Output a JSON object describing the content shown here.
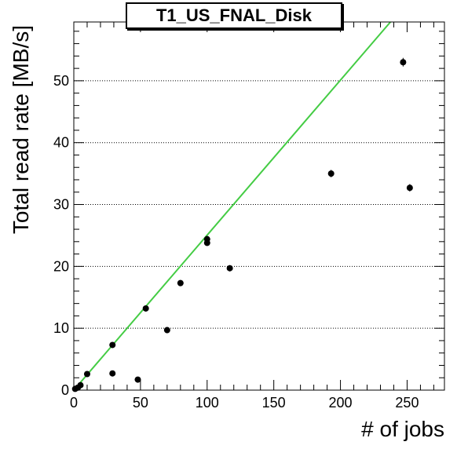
{
  "chart_data": {
    "type": "scatter",
    "title": "T1_US_FNAL_Disk",
    "xlabel": "# of jobs",
    "ylabel": "Total read rate [MB/s]",
    "xlim": [
      0,
      278
    ],
    "ylim": [
      0,
      59.5
    ],
    "x_ticks": [
      0,
      50,
      100,
      150,
      200,
      250
    ],
    "y_ticks": [
      0,
      10,
      20,
      30,
      40,
      50
    ],
    "grid": "horizontal dotted",
    "points": [
      {
        "x": 1,
        "y": 0.2,
        "err": 0.3
      },
      {
        "x": 3,
        "y": 0.4,
        "err": 0.3
      },
      {
        "x": 5,
        "y": 0.8,
        "err": 0.3
      },
      {
        "x": 10,
        "y": 2.6,
        "err": 0.4
      },
      {
        "x": 29,
        "y": 2.7,
        "err": 0.4
      },
      {
        "x": 29,
        "y": 7.3,
        "err": 0.4
      },
      {
        "x": 48,
        "y": 1.7,
        "err": 0.4
      },
      {
        "x": 54,
        "y": 13.2,
        "err": 0.5
      },
      {
        "x": 70,
        "y": 9.7,
        "err": 0.5
      },
      {
        "x": 80,
        "y": 17.3,
        "err": 0.5
      },
      {
        "x": 100,
        "y": 24.4,
        "err": 0.5
      },
      {
        "x": 100,
        "y": 23.8,
        "err": 0.5
      },
      {
        "x": 117,
        "y": 19.7,
        "err": 0.5
      },
      {
        "x": 193,
        "y": 35.0,
        "err": 0.6
      },
      {
        "x": 247,
        "y": 53.0,
        "err": 0.7
      },
      {
        "x": 252,
        "y": 32.7,
        "err": 0.6
      }
    ],
    "fit_line": {
      "x": [
        0,
        237.5
      ],
      "y": [
        0,
        59.5
      ],
      "color": "#44cc44"
    },
    "marker_color": "#000000"
  }
}
